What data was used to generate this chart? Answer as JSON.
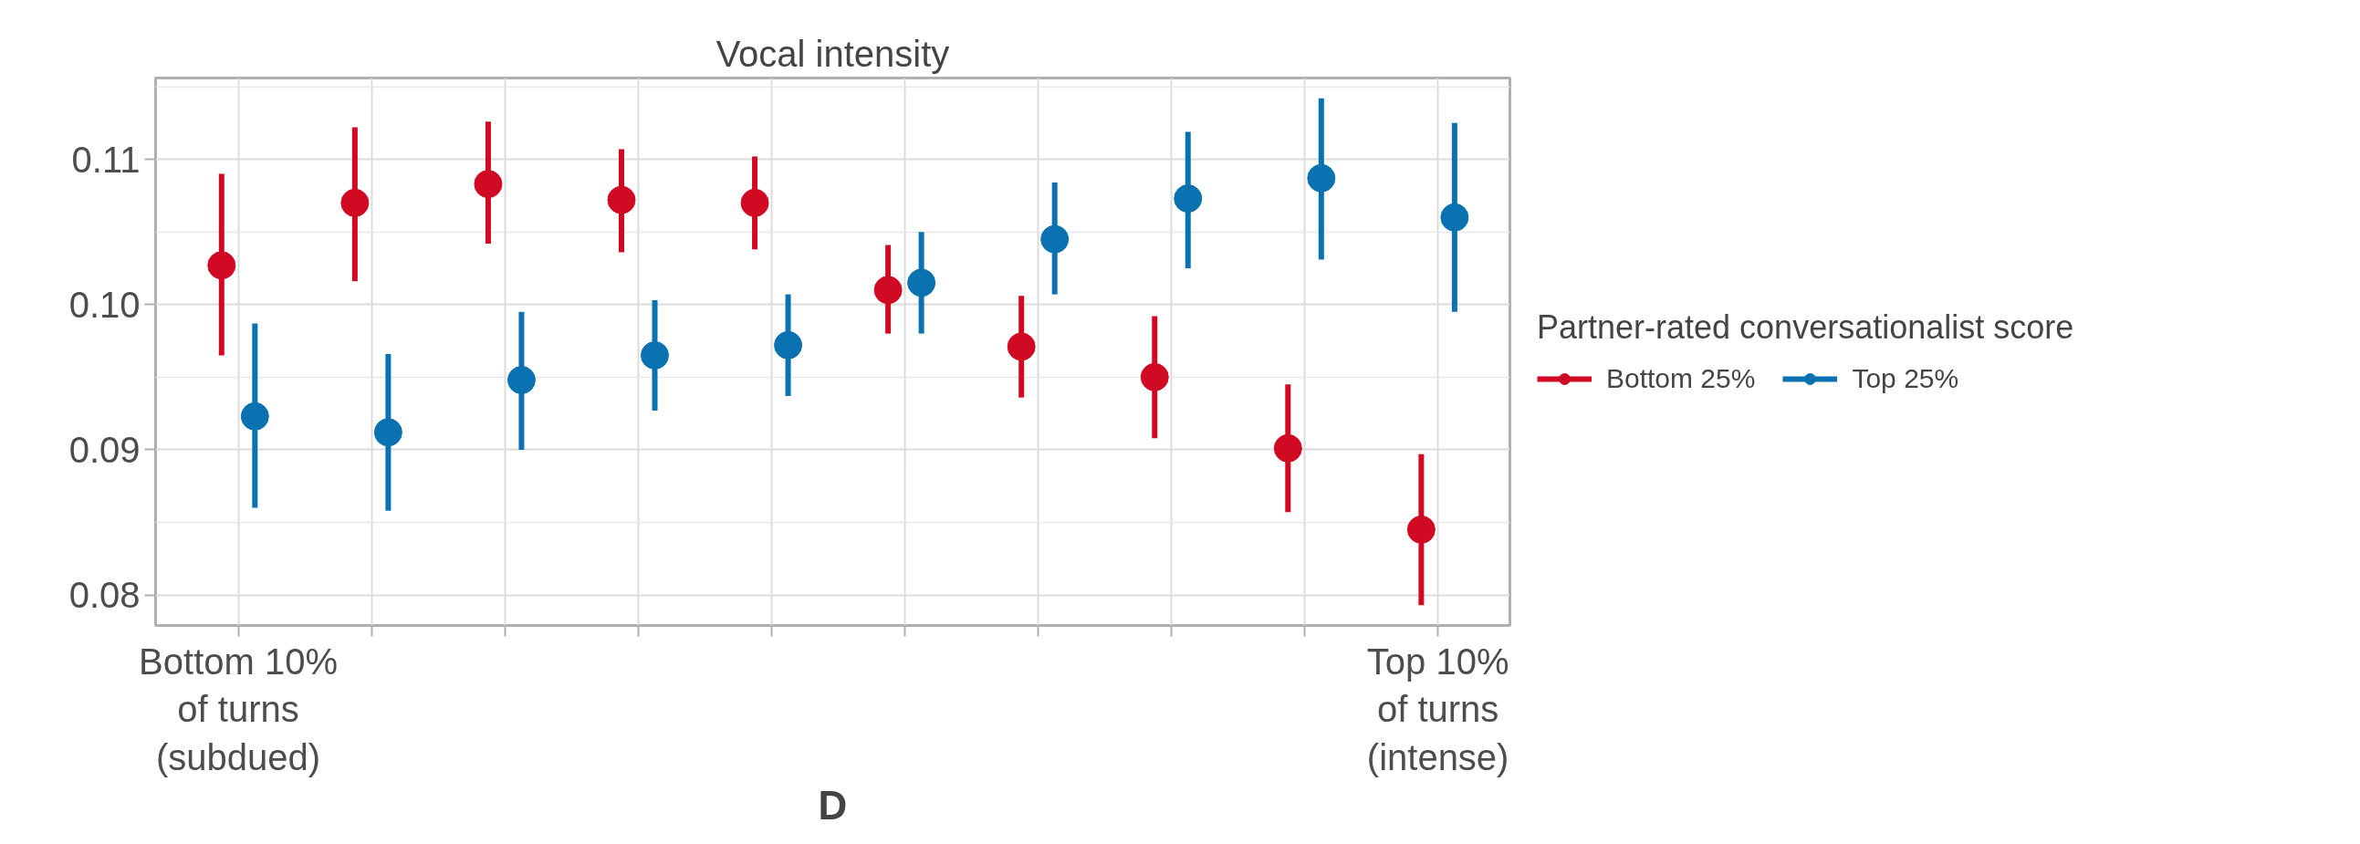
{
  "chart_data": {
    "type": "scatter",
    "title": "Vocal intensity",
    "categories": [
      "Bottom 10%\nof turns\n(subdued)",
      null,
      null,
      null,
      null,
      null,
      null,
      null,
      null,
      "Top 10%\nof turns\n(intense)"
    ],
    "series": [
      {
        "name": "Bottom 25%",
        "color": "#d10a24",
        "values": [
          0.1027,
          0.107,
          0.1083,
          0.1072,
          0.107,
          0.101,
          0.0971,
          0.095,
          0.0901,
          0.0845
        ],
        "errors": [
          [
            0.0965,
            0.109
          ],
          [
            0.1016,
            0.1122
          ],
          [
            0.1042,
            0.1126
          ],
          [
            0.1036,
            0.1107
          ],
          [
            0.1038,
            0.1102
          ],
          [
            0.098,
            0.1041
          ],
          [
            0.0936,
            0.1006
          ],
          [
            0.0908,
            0.0992
          ],
          [
            0.0857,
            0.0945
          ],
          [
            0.0793,
            0.0897
          ]
        ]
      },
      {
        "name": "Top 25%",
        "color": "#0a72b0",
        "values": [
          0.0923,
          0.0912,
          0.0948,
          0.0965,
          0.0972,
          0.1015,
          0.1045,
          0.1073,
          0.1087,
          0.106
        ],
        "errors": [
          [
            0.086,
            0.0987
          ],
          [
            0.0858,
            0.0966
          ],
          [
            0.09,
            0.0995
          ],
          [
            0.0927,
            0.1003
          ],
          [
            0.0937,
            0.1007
          ],
          [
            0.098,
            0.105
          ],
          [
            0.1007,
            0.1084
          ],
          [
            0.1025,
            0.1119
          ],
          [
            0.1031,
            0.1142
          ],
          [
            0.0995,
            0.1125
          ]
        ]
      }
    ],
    "ylim": [
      0.0779,
      0.1156
    ],
    "yticks": [
      {
        "value": 0.08,
        "label": "0.08"
      },
      {
        "value": 0.09,
        "label": "0.09"
      },
      {
        "value": 0.1,
        "label": "0.10"
      },
      {
        "value": 0.11,
        "label": "0.11"
      }
    ],
    "legend_title": "Partner-rated conversationalist score",
    "legend": "right",
    "marker": "circle",
    "grid": true,
    "annotations": [
      "D"
    ]
  }
}
